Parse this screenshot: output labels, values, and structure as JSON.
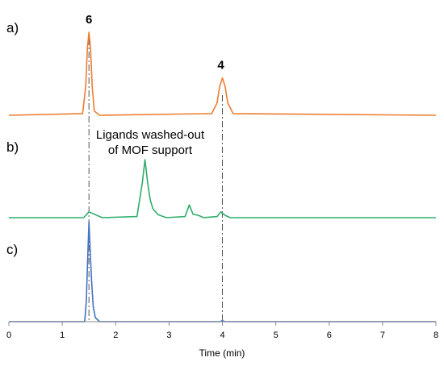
{
  "chart_data": {
    "type": "line",
    "xlabel": "Time (min)",
    "ylabel": "",
    "xlim": [
      0,
      8
    ],
    "x_ticks": [
      "0",
      "1",
      "2",
      "3",
      "4",
      "5",
      "6",
      "7",
      "8"
    ],
    "grid": false,
    "legend": "none",
    "panels": [
      {
        "label": "a)",
        "series": [
          {
            "color": "#ED7D31",
            "x": [
              0,
              1.38,
              1.44,
              1.47,
              1.5,
              1.53,
              1.56,
              1.6,
              1.7,
              3.8,
              3.9,
              3.95,
              4.0,
              4.05,
              4.1,
              4.2,
              8
            ],
            "y": [
              0,
              0.02,
              0.35,
              0.8,
              1.0,
              0.8,
              0.35,
              0.05,
              0.0,
              0.02,
              0.15,
              0.35,
              0.45,
              0.35,
              0.15,
              0.02,
              0
            ]
          }
        ],
        "peak_labels": [
          {
            "text": "6",
            "x": 1.5
          },
          {
            "text": "4",
            "x": 3.97
          }
        ]
      },
      {
        "label": "b)",
        "series": [
          {
            "color": "#2EAD6B",
            "x": [
              0,
              1.4,
              1.5,
              1.6,
              1.75,
              2.4,
              2.5,
              2.55,
              2.6,
              2.65,
              2.7,
              2.8,
              2.95,
              3.3,
              3.38,
              3.45,
              3.5,
              3.55,
              3.65,
              3.9,
              3.97,
              4.05,
              4.15,
              8
            ],
            "y": [
              0,
              0.0,
              0.1,
              0.06,
              0.0,
              0.02,
              0.6,
              1.0,
              0.6,
              0.3,
              0.15,
              0.05,
              0.0,
              0.02,
              0.22,
              0.06,
              0.05,
              0.04,
              0.0,
              0.02,
              0.1,
              0.04,
              0.0,
              0
            ]
          }
        ],
        "annotation": [
          "Ligands washed-out",
          "of MOF support"
        ]
      },
      {
        "label": "c)",
        "series": [
          {
            "color": "#4472C4",
            "x": [
              0,
              1.42,
              1.45,
              1.48,
              1.5,
              1.52,
              1.55,
              1.58,
              1.62,
              1.7,
              3.95,
              4.0,
              4.05,
              8
            ],
            "y": [
              0,
              0.0,
              0.2,
              0.7,
              1.0,
              0.75,
              0.4,
              0.15,
              0.04,
              0.0,
              0.0,
              0.01,
              0.0,
              0
            ]
          }
        ]
      }
    ],
    "reference_lines": [
      {
        "x": 1.5,
        "style": "dash-dot"
      },
      {
        "x": 4.0,
        "style": "dash-dot"
      }
    ]
  }
}
